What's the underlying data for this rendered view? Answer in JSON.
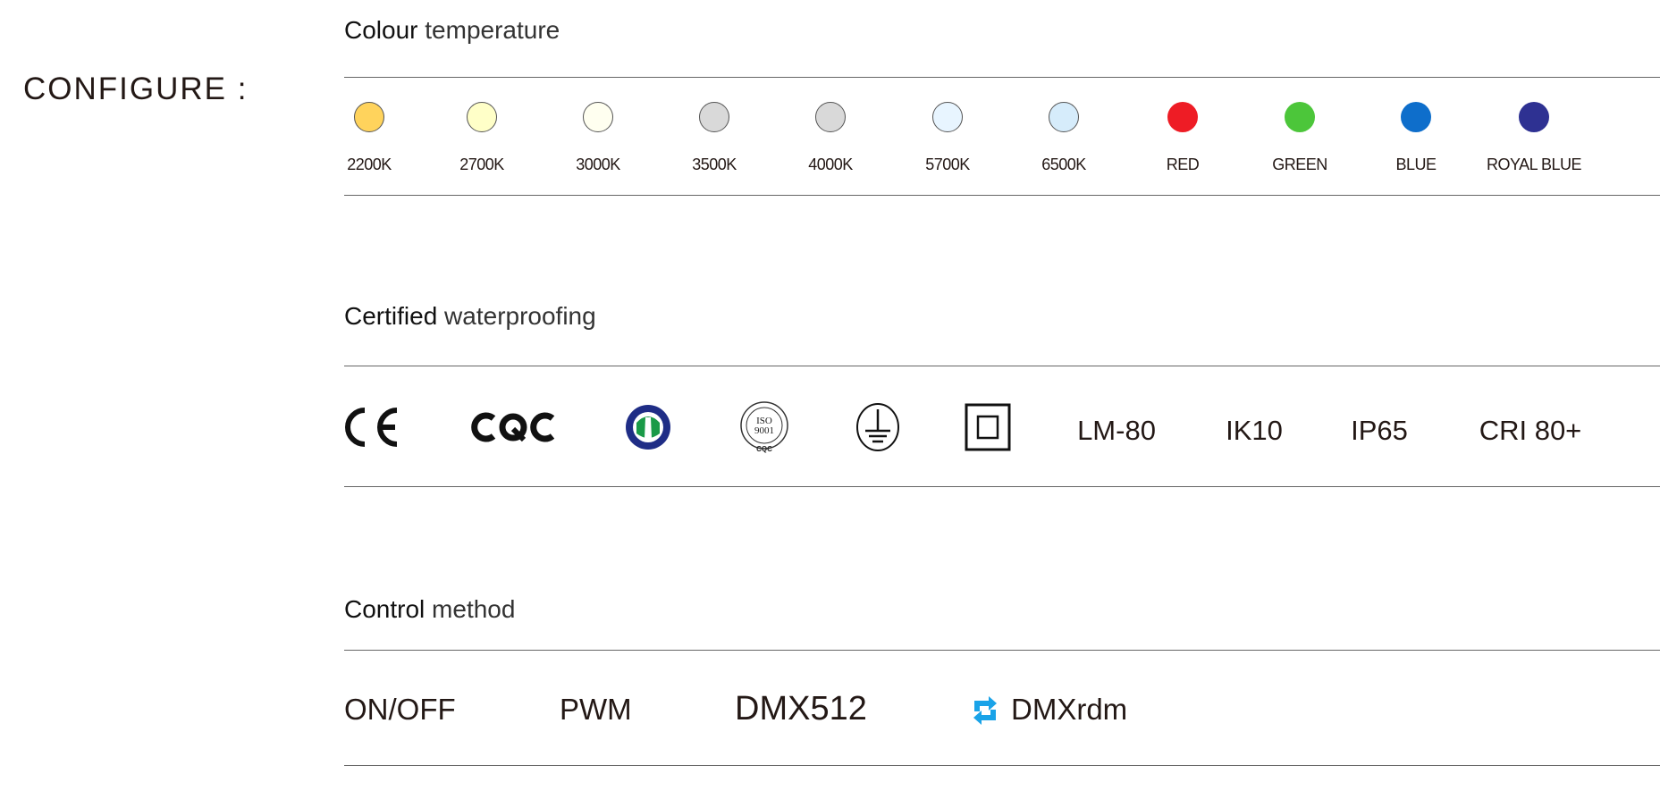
{
  "configure_label": "CONFIGURE :",
  "colour": {
    "title_bold": "Colour",
    "title_rest": "temperature",
    "items": [
      {
        "label": "2200K",
        "color": "#ffd35c"
      },
      {
        "label": "2700K",
        "color": "#ffffc8"
      },
      {
        "label": "3000K",
        "color": "#fffff0"
      },
      {
        "label": "3500K",
        "color": "#d9d9d9"
      },
      {
        "label": "4000K",
        "color": "#d9d9d9"
      },
      {
        "label": "5700K",
        "color": "#e8f5ff"
      },
      {
        "label": "6500K",
        "color": "#d6ecfb"
      },
      {
        "label": "RED",
        "color": "#ee1c25"
      },
      {
        "label": "GREEN",
        "color": "#4cc63a"
      },
      {
        "label": "BLUE",
        "color": "#0e6ecb"
      },
      {
        "label": "ROYAL BLUE",
        "color": "#2e3192"
      }
    ]
  },
  "cert": {
    "title_bold": "Certified",
    "title_rest": "waterproofing",
    "icons": [
      "ce-mark-icon",
      "cqc-logo-icon",
      "iso14000-seal-icon",
      "iso9001-cqc-seal-icon",
      "protective-earth-icon",
      "double-insulation-icon"
    ],
    "logo_text": {
      "ce": "CE",
      "cqc": "CQC",
      "iso9001": "ISO 9001",
      "iso14000": "ISO 14000"
    },
    "texts": [
      "LM-80",
      "IK10",
      "IP65",
      "CRI 80+"
    ]
  },
  "control": {
    "title_bold": "Control",
    "title_rest": "method",
    "items": [
      "ON/OFF",
      "PWM",
      "DMX512",
      "DMXrdm"
    ],
    "rdm_icon_color": "#1aa3e8"
  }
}
